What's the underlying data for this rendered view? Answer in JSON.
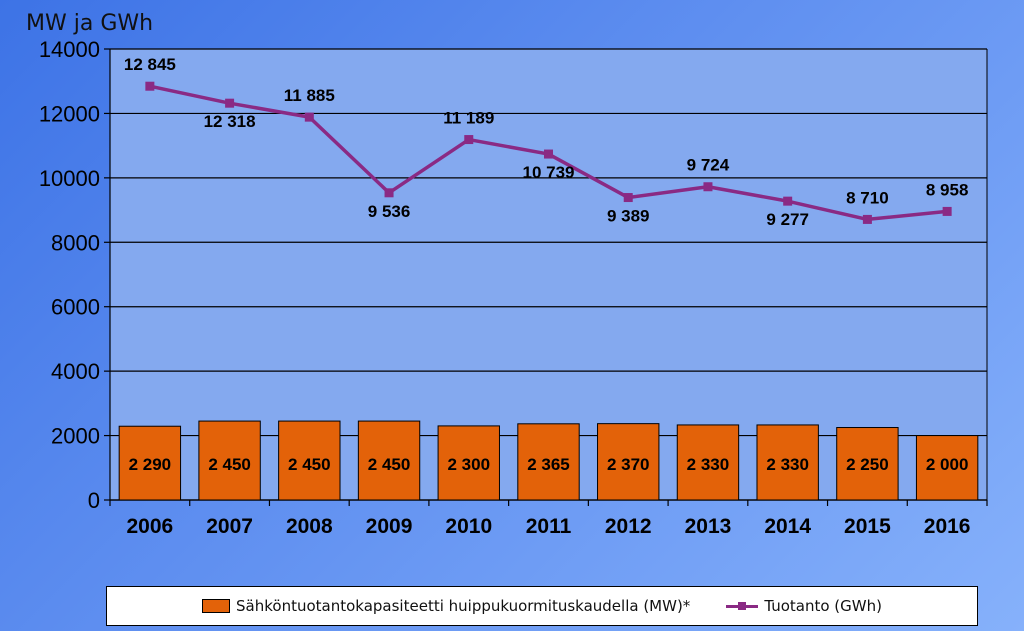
{
  "chart_data": {
    "type": "bar+line",
    "y_unit_label": "MW ja GWh",
    "ylim": [
      0,
      14000
    ],
    "y_ticks": [
      "0",
      "2000",
      "4000",
      "6000",
      "8000",
      "10000",
      "12000",
      "14000"
    ],
    "y_tick_values": [
      0,
      2000,
      4000,
      6000,
      8000,
      10000,
      12000,
      14000
    ],
    "categories": [
      "2006",
      "2007",
      "2008",
      "2009",
      "2010",
      "2011",
      "2012",
      "2013",
      "2014",
      "2015",
      "2016"
    ],
    "grid": true,
    "legend_position": "bottom",
    "series": [
      {
        "name": "Sähköntuotantokapasiteetti huippukuormituskaudella (MW)*",
        "kind": "bar",
        "color": "#e36209",
        "values": [
          2290,
          2450,
          2450,
          2450,
          2300,
          2365,
          2370,
          2330,
          2330,
          2250,
          2000
        ],
        "labels": [
          "2 290",
          "2 450",
          "2 450",
          "2 450",
          "2 300",
          "2 365",
          "2 370",
          "2 330",
          "2 330",
          "2 250",
          "2 000"
        ]
      },
      {
        "name": "Tuotanto (GWh)",
        "kind": "line",
        "color": "#8a2a84",
        "values": [
          12845,
          12318,
          11885,
          9536,
          11189,
          10739,
          9389,
          9724,
          9277,
          8710,
          8958
        ],
        "labels": [
          "12 845",
          "12 318",
          "11 885",
          "9 536",
          "11 189",
          "10 739",
          "9 389",
          "9 724",
          "9 277",
          "8 710",
          "8 958"
        ]
      }
    ]
  }
}
